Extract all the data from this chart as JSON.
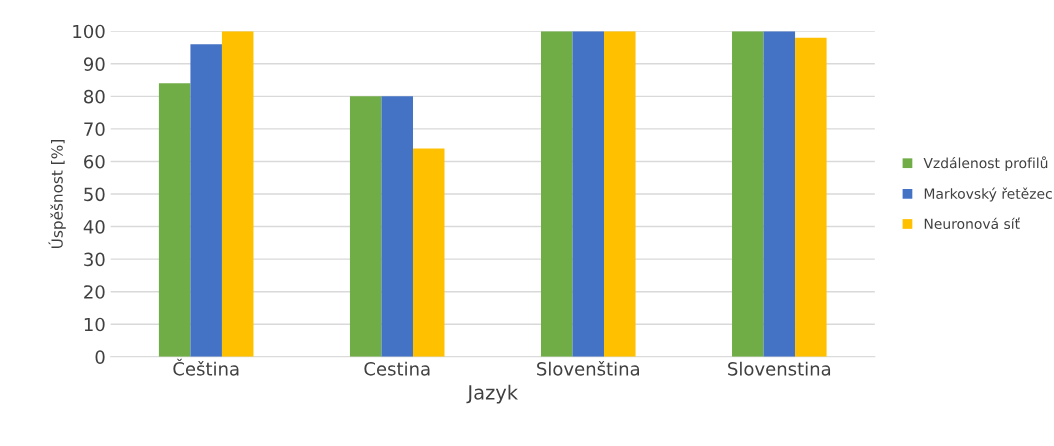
{
  "chart_data": {
    "type": "bar",
    "xlabel": "Jazyk",
    "ylabel": "Úspěšnost [%]",
    "categories": [
      "Čeština",
      "Cestina",
      "Slovenština",
      "Slovenstina"
    ],
    "series": [
      {
        "name": "Vzdálenost profilů",
        "color": "#70ad47",
        "values": [
          84,
          80,
          100,
          100
        ]
      },
      {
        "name": "Markovský řetězec",
        "color": "#4472c4",
        "values": [
          96,
          80,
          100,
          100
        ]
      },
      {
        "name": "Neuronová síť",
        "color": "#ffc000",
        "values": [
          100,
          64,
          100,
          98
        ]
      }
    ],
    "ylim": [
      0,
      100
    ],
    "yticks": [
      0,
      10,
      20,
      30,
      40,
      50,
      60,
      70,
      80,
      90,
      100
    ],
    "grid": "y",
    "legend": "right"
  }
}
